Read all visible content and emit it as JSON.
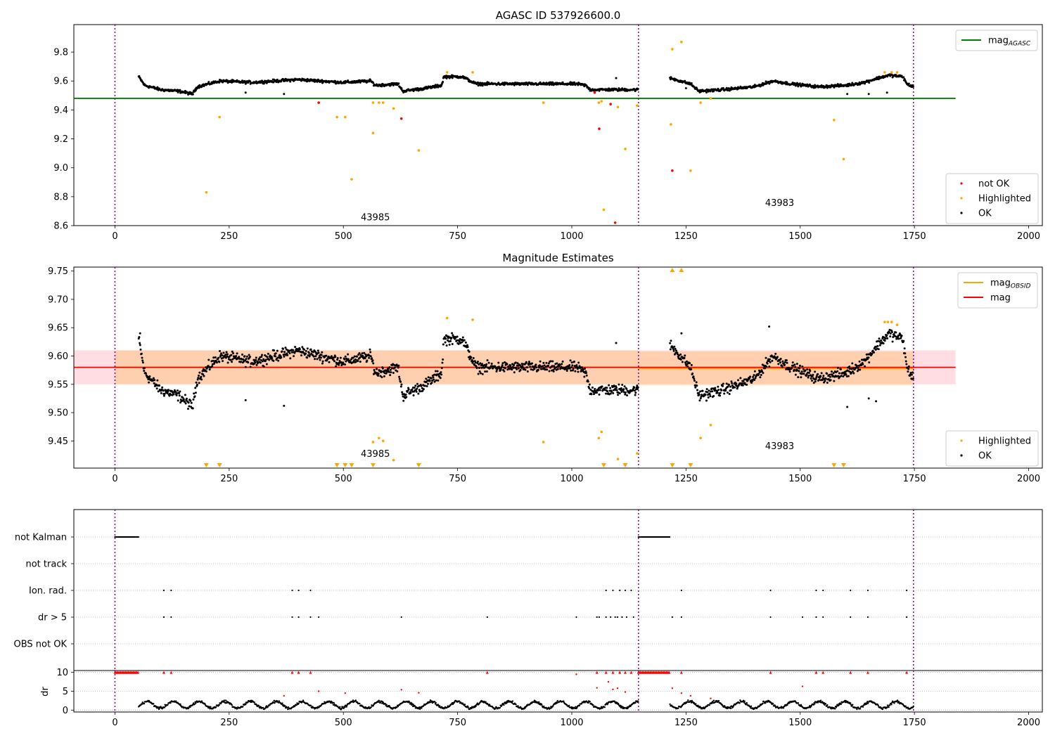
{
  "chart_data": [
    {
      "type": "scatter",
      "title": "AGASC ID 537926600.0",
      "xlim": [
        -90,
        2030
      ],
      "ylim": [
        8.6,
        9.99
      ],
      "xticks": [
        0,
        250,
        500,
        750,
        1000,
        1250,
        1500,
        1750,
        2000
      ],
      "yticks": [
        8.6,
        8.8,
        9.0,
        9.2,
        9.4,
        9.6,
        9.8
      ],
      "obsid_boundaries": [
        0,
        1146,
        1748
      ],
      "obsid_labels": [
        {
          "text": "43985",
          "x": 570,
          "y": 8.66
        },
        {
          "text": "43983",
          "x": 1455,
          "y": 8.76
        }
      ],
      "reference_line": {
        "name": "mag_AGASC",
        "y": 9.48,
        "x_range": [
          -90,
          1840
        ],
        "color": "#008000"
      },
      "series": [
        {
          "name": "not OK",
          "color": "#ff0000",
          "points": [
            [
              446,
              9.45
            ],
            [
              627,
              9.34
            ],
            [
              1060,
              9.27
            ],
            [
              1085,
              9.44
            ],
            [
              1095,
              8.62
            ],
            [
              1220,
              8.98
            ],
            [
              1050,
              9.52
            ]
          ]
        },
        {
          "name": "Highlighted",
          "color": "#ffa500",
          "points": [
            [
              200,
              8.83
            ],
            [
              229,
              9.35
            ],
            [
              486,
              9.35
            ],
            [
              504,
              9.35
            ],
            [
              518,
              8.92
            ],
            [
              565,
              9.24
            ],
            [
              565,
              9.45
            ],
            [
              578,
              9.45
            ],
            [
              587,
              9.45
            ],
            [
              610,
              9.41
            ],
            [
              665,
              9.12
            ],
            [
              727,
              9.66
            ],
            [
              783,
              9.66
            ],
            [
              938,
              9.45
            ],
            [
              1059,
              9.45
            ],
            [
              1065,
              9.46
            ],
            [
              1070,
              8.71
            ],
            [
              1101,
              9.42
            ],
            [
              1117,
              9.13
            ],
            [
              1143,
              9.43
            ],
            [
              1217,
              9.3
            ],
            [
              1220,
              9.82
            ],
            [
              1240,
              9.87
            ],
            [
              1260,
              8.98
            ],
            [
              1282,
              9.45
            ],
            [
              1304,
              9.48
            ],
            [
              1574,
              9.33
            ],
            [
              1595,
              9.06
            ],
            [
              1685,
              9.66
            ],
            [
              1700,
              9.66
            ],
            [
              1712,
              9.66
            ]
          ]
        }
      ],
      "ok_series": {
        "name": "OK",
        "color": "#000000",
        "segments": [
          {
            "x_start": 52,
            "x_end": 1146,
            "trend": [
              [
                52,
                9.63
              ],
              [
                65,
                9.57
              ],
              [
                100,
                9.54
              ],
              [
                140,
                9.53
              ],
              [
                170,
                9.51
              ],
              [
                180,
                9.56
              ],
              [
                230,
                9.6
              ],
              [
                300,
                9.59
              ],
              [
                400,
                9.61
              ],
              [
                500,
                9.59
              ],
              [
                560,
                9.6
              ],
              [
                570,
                9.57
              ],
              [
                620,
                9.58
              ],
              [
                630,
                9.53
              ],
              [
                680,
                9.55
              ],
              [
                715,
                9.57
              ],
              [
                720,
                9.63
              ],
              [
                760,
                9.63
              ],
              [
                790,
                9.58
              ],
              [
                1010,
                9.58
              ],
              [
                1030,
                9.57
              ],
              [
                1040,
                9.54
              ],
              [
                1146,
                9.54
              ]
            ]
          },
          {
            "x_start": 1215,
            "x_end": 1748,
            "trend": [
              [
                1215,
                9.62
              ],
              [
                1260,
                9.58
              ],
              [
                1278,
                9.53
              ],
              [
                1330,
                9.54
              ],
              [
                1400,
                9.56
              ],
              [
                1440,
                9.6
              ],
              [
                1480,
                9.58
              ],
              [
                1540,
                9.56
              ],
              [
                1600,
                9.57
              ],
              [
                1640,
                9.59
              ],
              [
                1670,
                9.62
              ],
              [
                1695,
                9.64
              ],
              [
                1725,
                9.63
              ],
              [
                1733,
                9.58
              ],
              [
                1748,
                9.56
              ]
            ]
          }
        ],
        "outliers": [
          [
            286,
            9.52
          ],
          [
            370,
            9.51
          ],
          [
            1097,
            9.62
          ],
          [
            1650,
            9.51
          ],
          [
            1690,
            9.52
          ],
          [
            1603,
            9.51
          ],
          [
            1250,
            9.55
          ]
        ]
      },
      "legends": [
        {
          "position": "upper right",
          "entries": [
            {
              "label": "mag",
              "sub": "AGASC",
              "color": "#008000",
              "kind": "line"
            }
          ]
        },
        {
          "position": "lower right",
          "entries": [
            {
              "label": "not OK",
              "color": "#ff0000",
              "kind": "dot"
            },
            {
              "label": "Highlighted",
              "color": "#ffa500",
              "kind": "dot"
            },
            {
              "label": "OK",
              "color": "#000000",
              "kind": "dot"
            }
          ]
        }
      ]
    },
    {
      "type": "scatter",
      "title": "Magnitude Estimates",
      "xlim": [
        -90,
        2030
      ],
      "ylim": [
        9.402,
        9.757
      ],
      "xticks": [
        0,
        250,
        500,
        750,
        1000,
        1250,
        1500,
        1750,
        2000
      ],
      "yticks": [
        9.45,
        9.5,
        9.55,
        9.6,
        9.65,
        9.7,
        9.75
      ],
      "obsid_boundaries": [
        0,
        1146,
        1748
      ],
      "obsid_labels": [
        {
          "text": "43985",
          "x": 570,
          "y": 9.428
        },
        {
          "text": "43983",
          "x": 1455,
          "y": 9.442
        }
      ],
      "mag_line": {
        "name": "mag",
        "y": 9.58,
        "x_range": [
          -90,
          1840
        ],
        "band": [
          9.55,
          9.61
        ],
        "color": "#ff0000",
        "band_color": "#ffdde2"
      },
      "obsid_lines": [
        {
          "x_range": [
            0,
            1146
          ],
          "y": 9.58,
          "band": [
            9.55,
            9.61
          ],
          "color": "#ffa500"
        },
        {
          "x_range": [
            1146,
            1748
          ],
          "y": 9.578,
          "band": [
            9.548,
            9.608
          ],
          "color": "#ffa500"
        }
      ],
      "series": [
        {
          "name": "Highlighted",
          "color": "#ffa500",
          "points": [
            [
              565,
              9.448
            ],
            [
              578,
              9.455
            ],
            [
              587,
              9.45
            ],
            [
              610,
              9.416
            ],
            [
              727,
              9.667
            ],
            [
              783,
              9.664
            ],
            [
              938,
              9.448
            ],
            [
              1059,
              9.455
            ],
            [
              1065,
              9.466
            ],
            [
              1101,
              9.418
            ],
            [
              1143,
              9.428
            ],
            [
              1282,
              9.455
            ],
            [
              1304,
              9.478
            ],
            [
              1685,
              9.66
            ],
            [
              1692,
              9.66
            ],
            [
              1700,
              9.66
            ],
            [
              1712,
              9.655
            ]
          ]
        },
        {
          "name": "Highlighted (out of range)",
          "color": "#ffa500",
          "marker": "triangle",
          "points_low": [
            200,
            229,
            486,
            504,
            518,
            565,
            665,
            1070,
            1117,
            1220,
            1260,
            1574,
            1595
          ],
          "points_high": [
            1220,
            1240
          ]
        }
      ],
      "ok_series_ref": 0,
      "ok_outliers": [
        [
          55,
          9.64
        ],
        [
          286,
          9.522
        ],
        [
          370,
          9.512
        ],
        [
          1097,
          9.623
        ],
        [
          1240,
          9.64
        ],
        [
          1432,
          9.652
        ],
        [
          1603,
          9.51
        ],
        [
          1650,
          9.525
        ],
        [
          1666,
          9.52
        ]
      ],
      "legends": [
        {
          "position": "upper right",
          "entries": [
            {
              "label": "mag",
              "sub": "OBSID",
              "color": "#ffa500",
              "kind": "line"
            },
            {
              "label": "mag",
              "sub": "",
              "color": "#ff0000",
              "kind": "line"
            }
          ]
        },
        {
          "position": "lower right",
          "entries": [
            {
              "label": "Highlighted",
              "color": "#ffa500",
              "kind": "dot"
            },
            {
              "label": "OK",
              "color": "#000000",
              "kind": "dot"
            }
          ]
        }
      ]
    },
    {
      "type": "scatter",
      "title": "",
      "xlim": [
        -90,
        2030
      ],
      "flag_rows": [
        "not Kalman",
        "not track",
        "Ion. rad.",
        "dr > 5",
        "OBS not OK"
      ],
      "flags": {
        "not Kalman": {
          "ranges": [
            [
              0,
              52
            ],
            [
              1146,
              1215
            ]
          ]
        },
        "not track": {
          "x": []
        },
        "Ion. rad.": {
          "x": [
            107,
            123,
            388,
            402,
            428,
            1075,
            1090,
            1105,
            1117,
            1130,
            1240,
            1435,
            1535,
            1550,
            1610,
            1648,
            1733
          ]
        },
        "dr > 5": {
          "x": [
            107,
            123,
            388,
            402,
            428,
            446,
            627,
            815,
            1010,
            1055,
            1060,
            1075,
            1085,
            1095,
            1100,
            1110,
            1120,
            1135,
            1220,
            1240,
            1435,
            1505,
            1535,
            1550,
            1610,
            1648,
            1733
          ]
        },
        "OBS not OK": {
          "x": []
        }
      }
    },
    {
      "type": "scatter",
      "title": "",
      "ylabel": "dr",
      "xlim": [
        -90,
        2030
      ],
      "ylim": [
        -0.5,
        10.5
      ],
      "yticks": [
        0,
        5,
        10
      ],
      "xticks": [
        0,
        250,
        500,
        750,
        1000,
        1250,
        1500,
        1750,
        2000
      ],
      "dr_cap_points": [
        107,
        123,
        388,
        402,
        428,
        815,
        1055,
        1075,
        1090,
        1105,
        1117,
        1130,
        1240,
        1435,
        1535,
        1550,
        1610,
        1648,
        1733
      ],
      "dr_red_points": [
        [
          370,
          3.8
        ],
        [
          446,
          5.0
        ],
        [
          504,
          4.5
        ],
        [
          627,
          5.4
        ],
        [
          665,
          4.6
        ],
        [
          1010,
          9.5
        ],
        [
          1055,
          5.9
        ],
        [
          1080,
          7.5
        ],
        [
          1090,
          5.5
        ],
        [
          1100,
          5.8
        ],
        [
          1117,
          4.8
        ],
        [
          1220,
          5.8
        ],
        [
          1240,
          4.5
        ],
        [
          1260,
          3.8
        ],
        [
          1304,
          3.1
        ],
        [
          1505,
          6.3
        ]
      ]
    }
  ]
}
